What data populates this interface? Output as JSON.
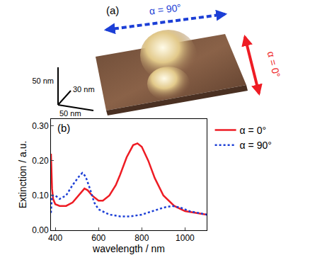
{
  "panel_a": {
    "label": "(a)",
    "polarizations": [
      {
        "text": "α = 90°",
        "color": "#1c3fd6",
        "line_style": "dashed"
      },
      {
        "text": "α = 0°",
        "color": "#ee1c24",
        "line_style": "solid"
      }
    ],
    "scale_labels": [
      "50 nm",
      "30 nm",
      "50 nm"
    ]
  },
  "chart_data": {
    "type": "line",
    "annotation": "(b)",
    "x_label": "wavelength / nm",
    "y_label": "Extinction / a.u.",
    "xlim": [
      380,
      1100
    ],
    "xticks": [
      400,
      600,
      800,
      1000
    ],
    "ylim": [
      0,
      0.32
    ],
    "yticks": [
      {
        "value": 0,
        "label": "0.00"
      },
      {
        "value": 0.1,
        "label": "0.10"
      },
      {
        "value": 0.2,
        "label": "0.20"
      },
      {
        "value": 0.3,
        "label": "0.30"
      }
    ],
    "legend": "right",
    "series": [
      {
        "name": "α = 0°",
        "color": "#ee1c24",
        "line_style": "solid",
        "x": [
          380,
          385,
          390,
          400,
          420,
          450,
          480,
          500,
          520,
          535,
          550,
          570,
          600,
          620,
          650,
          680,
          700,
          730,
          760,
          780,
          800,
          830,
          860,
          900,
          950,
          1000,
          1050,
          1100
        ],
        "values": [
          0.22,
          0.12,
          0.09,
          0.075,
          0.07,
          0.07,
          0.08,
          0.095,
          0.11,
          0.12,
          0.115,
          0.1,
          0.085,
          0.085,
          0.1,
          0.13,
          0.16,
          0.21,
          0.245,
          0.25,
          0.24,
          0.2,
          0.15,
          0.1,
          0.07,
          0.055,
          0.05,
          0.045
        ]
      },
      {
        "name": "α = 90°",
        "color": "#1c3fd6",
        "line_style": "dotted",
        "x": [
          380,
          385,
          400,
          420,
          450,
          480,
          510,
          525,
          540,
          560,
          580,
          600,
          650,
          700,
          750,
          800,
          850,
          900,
          940,
          980,
          1020,
          1060,
          1100
        ],
        "values": [
          0.05,
          0.1,
          0.1,
          0.09,
          0.1,
          0.13,
          0.155,
          0.165,
          0.155,
          0.12,
          0.08,
          0.06,
          0.045,
          0.04,
          0.04,
          0.045,
          0.055,
          0.065,
          0.07,
          0.065,
          0.055,
          0.05,
          0.045
        ]
      }
    ]
  }
}
